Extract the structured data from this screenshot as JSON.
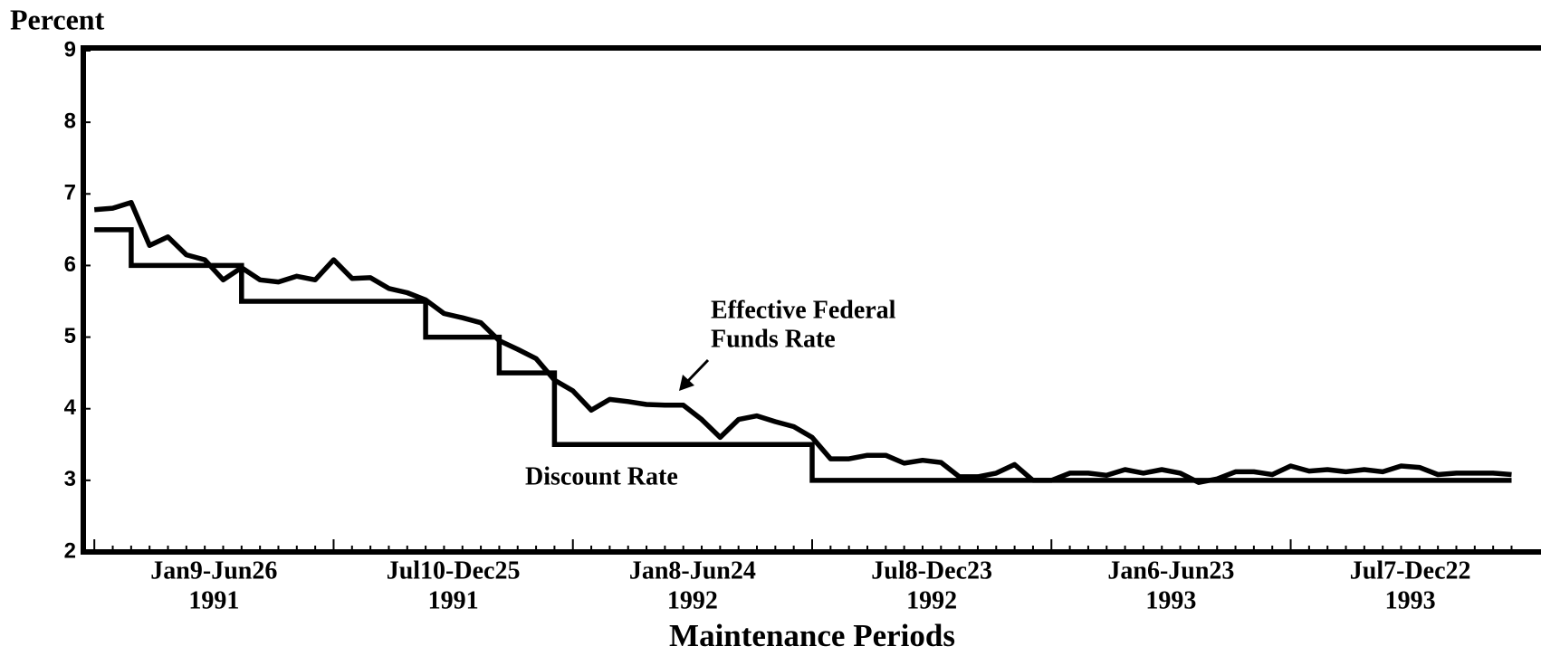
{
  "chart_data": {
    "type": "line",
    "ylabel": "Percent",
    "xlabel": "Maintenance Periods",
    "period_groups": [
      {
        "label": "Jan9-Jun26",
        "year": "1991"
      },
      {
        "label": "Jul10-Dec25",
        "year": "1991"
      },
      {
        "label": "Jan8-Jun24",
        "year": "1992"
      },
      {
        "label": "Jul8-Dec23",
        "year": "1992"
      },
      {
        "label": "Jan6-Jun23",
        "year": "1993"
      },
      {
        "label": "Jul7-Dec22",
        "year": "1993"
      }
    ],
    "major_tick_every": 13,
    "xlim": [
      -0.6,
      78.6
    ],
    "ylim": [
      2,
      9
    ],
    "yticks": [
      2,
      3,
      4,
      5,
      6,
      7,
      8,
      9
    ],
    "series": [
      {
        "name": "Effective Federal Funds Rate",
        "color": "#000000",
        "values": [
          6.78,
          6.8,
          6.88,
          6.28,
          6.4,
          6.15,
          6.08,
          5.8,
          5.97,
          5.8,
          5.77,
          5.85,
          5.8,
          6.08,
          5.82,
          5.83,
          5.68,
          5.62,
          5.52,
          5.33,
          5.27,
          5.2,
          4.95,
          4.83,
          4.7,
          4.4,
          4.25,
          3.98,
          4.13,
          4.1,
          4.06,
          4.05,
          4.05,
          3.85,
          3.6,
          3.85,
          3.9,
          3.82,
          3.75,
          3.6,
          3.3,
          3.3,
          3.35,
          3.35,
          3.24,
          3.28,
          3.25,
          3.05,
          3.05,
          3.1,
          3.22,
          3.0,
          3.0,
          3.1,
          3.1,
          3.07,
          3.15,
          3.1,
          3.15,
          3.1,
          2.97,
          3.02,
          3.12,
          3.12,
          3.08,
          3.2,
          3.13,
          3.15,
          3.12,
          3.15,
          3.12,
          3.2,
          3.18,
          3.08,
          3.1,
          3.1,
          3.1,
          3.08
        ]
      },
      {
        "name": "Discount Rate",
        "color": "#000000",
        "step": "post",
        "values": [
          6.5,
          6.5,
          6.0,
          6.0,
          6.0,
          6.0,
          6.0,
          6.0,
          5.5,
          5.5,
          5.5,
          5.5,
          5.5,
          5.5,
          5.5,
          5.5,
          5.5,
          5.5,
          5.0,
          5.0,
          5.0,
          5.0,
          4.5,
          4.5,
          4.5,
          3.5,
          3.5,
          3.5,
          3.5,
          3.5,
          3.5,
          3.5,
          3.5,
          3.5,
          3.5,
          3.5,
          3.5,
          3.5,
          3.5,
          3.0,
          3.0,
          3.0,
          3.0,
          3.0,
          3.0,
          3.0,
          3.0,
          3.0,
          3.0,
          3.0,
          3.0,
          3.0,
          3.0,
          3.0,
          3.0,
          3.0,
          3.0,
          3.0,
          3.0,
          3.0,
          3.0,
          3.0,
          3.0,
          3.0,
          3.0,
          3.0,
          3.0,
          3.0,
          3.0,
          3.0,
          3.0,
          3.0,
          3.0,
          3.0,
          3.0,
          3.0,
          3.0,
          3.0
        ]
      }
    ],
    "annotations": [
      {
        "lines": [
          "Effective Federal",
          "Funds Rate"
        ]
      },
      {
        "lines": [
          "Discount Rate"
        ]
      }
    ]
  }
}
